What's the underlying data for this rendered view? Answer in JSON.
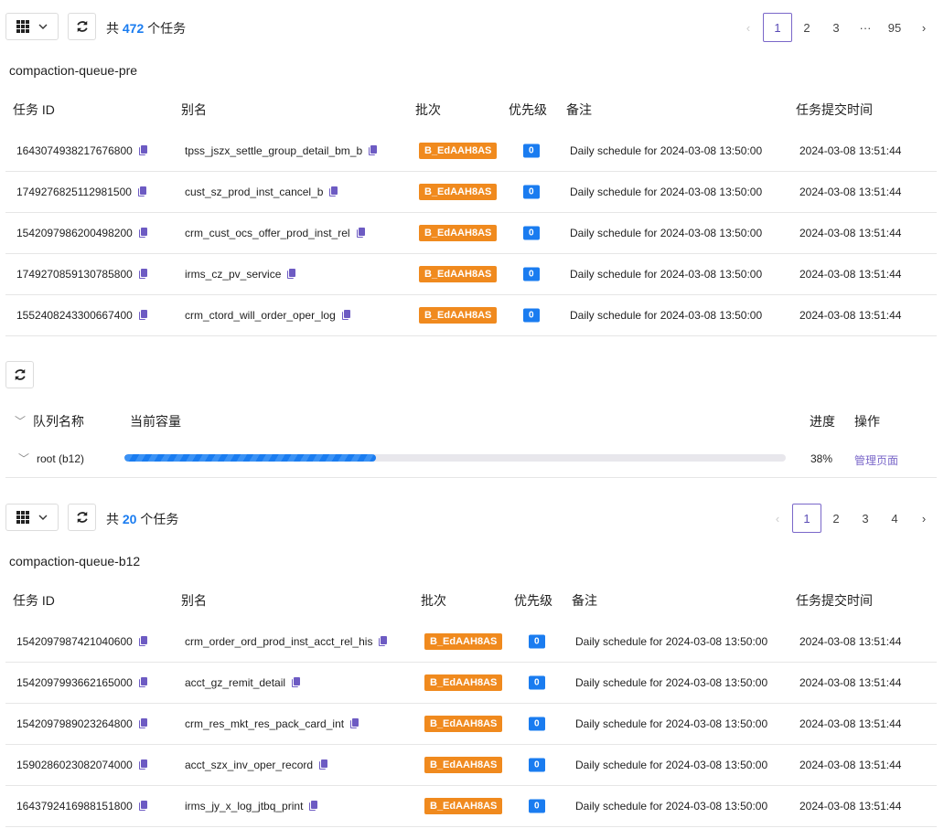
{
  "section1": {
    "count_prefix": "共",
    "count": "472",
    "count_suffix": "个任务",
    "pages": [
      "1",
      "2",
      "3",
      "···",
      "95"
    ],
    "queue_name": "compaction-queue-pre",
    "headers": [
      "任务 ID",
      "别名",
      "批次",
      "优先级",
      "备注",
      "任务提交时间"
    ],
    "rows": [
      {
        "id": "1643074938217676800",
        "alias": "tpss_jszx_settle_group_detail_bm_b",
        "batch": "B_EdAAH8AS",
        "priority": "0",
        "note": "Daily schedule for 2024-03-08 13:50:00",
        "time": "2024-03-08 13:51:44"
      },
      {
        "id": "1749276825112981500",
        "alias": "cust_sz_prod_inst_cancel_b",
        "batch": "B_EdAAH8AS",
        "priority": "0",
        "note": "Daily schedule for 2024-03-08 13:50:00",
        "time": "2024-03-08 13:51:44"
      },
      {
        "id": "1542097986200498200",
        "alias": "crm_cust_ocs_offer_prod_inst_rel",
        "batch": "B_EdAAH8AS",
        "priority": "0",
        "note": "Daily schedule for 2024-03-08 13:50:00",
        "time": "2024-03-08 13:51:44"
      },
      {
        "id": "1749270859130785800",
        "alias": "irms_cz_pv_service",
        "batch": "B_EdAAH8AS",
        "priority": "0",
        "note": "Daily schedule for 2024-03-08 13:50:00",
        "time": "2024-03-08 13:51:44"
      },
      {
        "id": "1552408243300667400",
        "alias": "crm_ctord_will_order_oper_log",
        "batch": "B_EdAAH8AS",
        "priority": "0",
        "note": "Daily schedule for 2024-03-08 13:50:00",
        "time": "2024-03-08 13:51:44"
      }
    ]
  },
  "queue": {
    "headers": [
      "队列名称",
      "当前容量",
      "进度",
      "操作"
    ],
    "row": {
      "name": "root (b12)",
      "progress": 38,
      "progress_label": "38%",
      "action": "管理页面"
    }
  },
  "section2": {
    "count_prefix": "共",
    "count": "20",
    "count_suffix": "个任务",
    "pages": [
      "1",
      "2",
      "3",
      "4"
    ],
    "queue_name": "compaction-queue-b12",
    "headers": [
      "任务 ID",
      "别名",
      "批次",
      "优先级",
      "备注",
      "任务提交时间"
    ],
    "rows": [
      {
        "id": "1542097987421040600",
        "alias": "crm_order_ord_prod_inst_acct_rel_his",
        "batch": "B_EdAAH8AS",
        "priority": "0",
        "note": "Daily schedule for 2024-03-08 13:50:00",
        "time": "2024-03-08 13:51:44"
      },
      {
        "id": "1542097993662165000",
        "alias": "acct_gz_remit_detail",
        "batch": "B_EdAAH8AS",
        "priority": "0",
        "note": "Daily schedule for 2024-03-08 13:50:00",
        "time": "2024-03-08 13:51:44"
      },
      {
        "id": "1542097989023264800",
        "alias": "crm_res_mkt_res_pack_card_int",
        "batch": "B_EdAAH8AS",
        "priority": "0",
        "note": "Daily schedule for 2024-03-08 13:50:00",
        "time": "2024-03-08 13:51:44"
      },
      {
        "id": "1590286023082074000",
        "alias": "acct_szx_inv_oper_record",
        "batch": "B_EdAAH8AS",
        "priority": "0",
        "note": "Daily schedule for 2024-03-08 13:50:00",
        "time": "2024-03-08 13:51:44"
      },
      {
        "id": "1643792416988151800",
        "alias": "irms_jy_x_log_jtbq_print",
        "batch": "B_EdAAH8AS",
        "priority": "0",
        "note": "Daily schedule for 2024-03-08 13:50:00",
        "time": "2024-03-08 13:51:44"
      }
    ]
  }
}
